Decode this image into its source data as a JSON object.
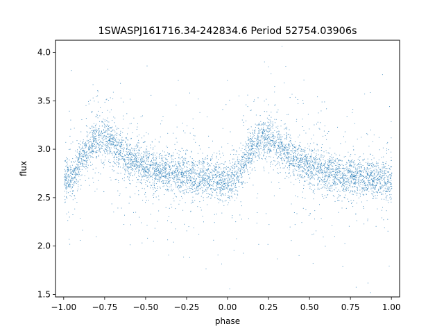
{
  "chart_data": {
    "type": "scatter",
    "title": "1SWASPJ161716.34-242834.6 Period 52754.03906s",
    "xlabel": "phase",
    "ylabel": "flux",
    "xlim": [
      -1.05,
      1.05
    ],
    "ylim": [
      1.475,
      4.125
    ],
    "x_ticks": [
      -1.0,
      -0.75,
      -0.5,
      -0.25,
      0.0,
      0.25,
      0.5,
      0.75,
      1.0
    ],
    "x_tick_labels": [
      "−1.00",
      "−0.75",
      "−0.50",
      "−0.25",
      "0.00",
      "0.25",
      "0.50",
      "0.75",
      "1.00"
    ],
    "y_ticks": [
      1.5,
      2.0,
      2.5,
      3.0,
      3.5,
      4.0
    ],
    "y_tick_labels": [
      "1.5",
      "2.0",
      "2.5",
      "3.0",
      "3.5",
      "4.0"
    ],
    "grid": false,
    "marker_color": "#1f77b4",
    "series": [
      {
        "x": [
          -1.0,
          -0.95,
          -0.9,
          -0.85,
          -0.8,
          -0.75,
          -0.7,
          -0.65,
          -0.6,
          -0.55,
          -0.5,
          -0.45,
          -0.4,
          -0.35,
          -0.3,
          -0.25,
          -0.2,
          -0.15,
          -0.1,
          -0.05,
          0.0,
          0.05,
          0.1,
          0.15,
          0.2,
          0.25,
          0.3,
          0.35,
          0.4,
          0.45,
          0.5,
          0.55,
          0.6,
          0.65,
          0.7,
          0.75,
          0.8,
          0.85,
          0.9,
          0.95,
          1.0
        ],
        "y": [
          2.66,
          2.72,
          2.88,
          3.02,
          3.12,
          3.13,
          3.06,
          2.98,
          2.91,
          2.86,
          2.82,
          2.79,
          2.77,
          2.75,
          2.74,
          2.73,
          2.72,
          2.71,
          2.7,
          2.68,
          2.66,
          2.72,
          2.88,
          3.02,
          3.12,
          3.13,
          3.06,
          2.98,
          2.91,
          2.86,
          2.82,
          2.79,
          2.77,
          2.75,
          2.74,
          2.73,
          2.72,
          2.71,
          2.7,
          2.68,
          2.66
        ]
      }
    ]
  }
}
